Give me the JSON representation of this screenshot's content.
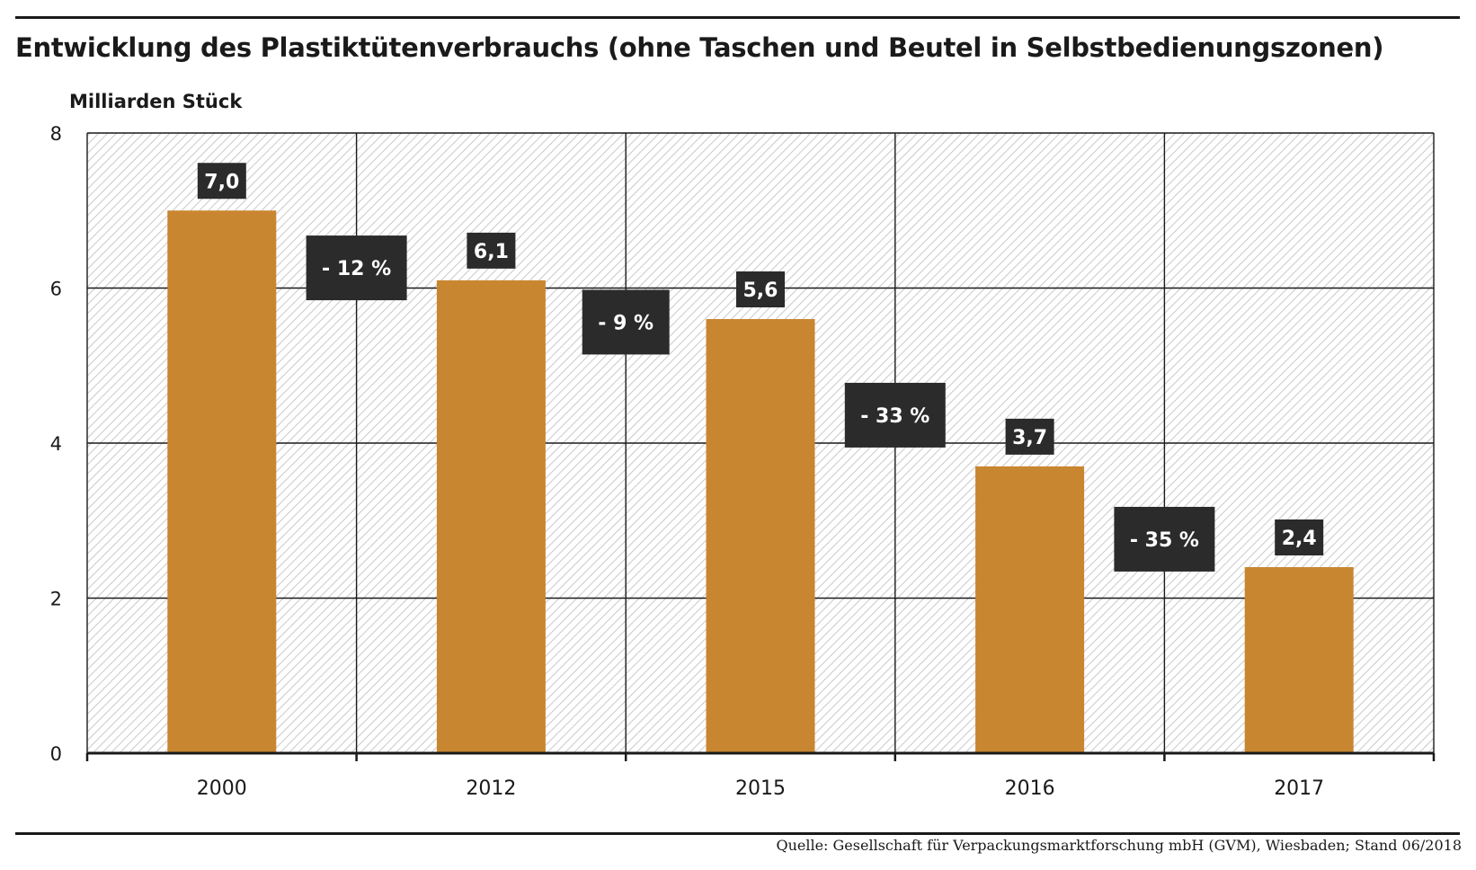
{
  "chart_data": {
    "type": "bar",
    "title": "Entwicklung des Plastiktütenverbrauchs (ohne Taschen und Beutel in Selbstbedienungszonen)",
    "ylabel": "Milliarden Stück",
    "xlabel": "",
    "categories": [
      "2000",
      "2012",
      "2015",
      "2016",
      "2017"
    ],
    "values": [
      7.0,
      6.1,
      5.6,
      3.7,
      2.4
    ],
    "value_labels": [
      "7,0",
      "6,1",
      "5,6",
      "3,7",
      "2,4"
    ],
    "change_labels": [
      "- 12 %",
      "- 9 %",
      "- 33 %",
      "- 35 %"
    ],
    "ylim": [
      0,
      8
    ],
    "yticks": [
      0,
      2,
      4,
      6,
      8
    ],
    "grid": true,
    "legend": "none",
    "source": "Quelle: Gesellschaft für Verpackungsmarktforschung mbH (GVM), Wiesbaden; Stand 06/2018"
  },
  "colors": {
    "bar": "#c98630",
    "label_box": "#2b2b2b",
    "label_text": "#ffffff",
    "grid": "#1a1a1a",
    "hatch": "#c9c9c9"
  }
}
